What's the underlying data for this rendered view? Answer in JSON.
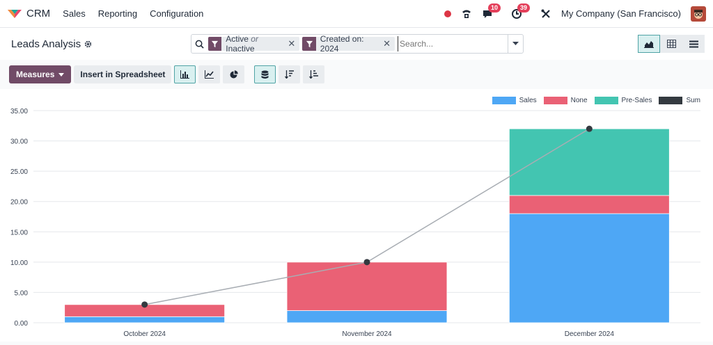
{
  "topbar": {
    "app_name": "CRM",
    "menu": [
      "Sales",
      "Reporting",
      "Configuration"
    ],
    "messages_badge": "10",
    "activities_badge": "39",
    "company": "My Company (San Francisco)"
  },
  "control": {
    "title": "Leads Analysis",
    "facets": [
      {
        "label_a": "Active",
        "label_or": "or",
        "label_b": "Inactive"
      },
      {
        "label": "Created on: 2024"
      }
    ],
    "search_placeholder": "Search..."
  },
  "toolbar": {
    "measures_label": "Measures",
    "spreadsheet_label": "Insert in Spreadsheet"
  },
  "colors": {
    "brand": "#714b67",
    "sales": "#4ea7f5",
    "none": "#ea6175",
    "presales": "#43c5b1",
    "sum": "#343a40"
  },
  "chart_data": {
    "type": "bar",
    "stacked": true,
    "categories": [
      "October 2024",
      "November 2024",
      "December 2024"
    ],
    "series": [
      {
        "name": "Sales",
        "values": [
          1,
          2,
          18
        ]
      },
      {
        "name": "None",
        "values": [
          2,
          8,
          3
        ]
      },
      {
        "name": "Pre-Sales",
        "values": [
          0,
          0,
          11
        ]
      }
    ],
    "line_series": {
      "name": "Sum",
      "values": [
        3,
        10,
        32
      ]
    },
    "ylim": [
      0,
      35
    ],
    "yticks": [
      "0.00",
      "5.00",
      "10.00",
      "15.00",
      "20.00",
      "25.00",
      "30.00",
      "35.00"
    ],
    "legend_position": "top-right",
    "grid": true
  }
}
